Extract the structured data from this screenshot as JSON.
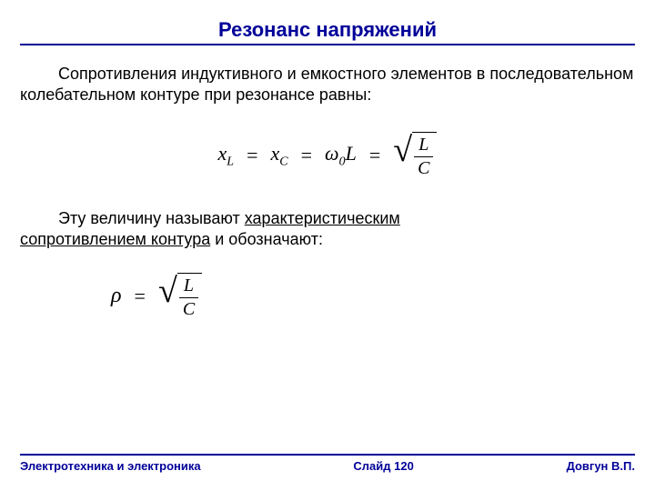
{
  "colors": {
    "accent": "#000099",
    "text": "#000000",
    "background": "#ffffff"
  },
  "typography": {
    "title_fontsize": 22,
    "body_fontsize": 18,
    "formula_fontsize": 22,
    "footer_fontsize": 13,
    "title_weight": "bold",
    "footer_weight": "bold",
    "body_font": "Arial",
    "formula_font": "Times New Roman"
  },
  "title": "Резонанс напряжений",
  "paragraph1": "Сопротивления индуктивного и емкостного элементов в последовательном колебательном контуре при резонансе равны:",
  "formula1": {
    "lhs_x": "x",
    "lhs_sub_L": "L",
    "lhs_sub_C": "C",
    "eq": "=",
    "omega": "ω",
    "omega_sub": "0",
    "L": "L",
    "frac_num": "L",
    "frac_den": "C"
  },
  "paragraph2_pre": "Эту величину называют ",
  "paragraph2_underline1": "характеристическим",
  "paragraph2_underline2": "сопротивлением контура",
  "paragraph2_post": " и обозначают:",
  "formula2": {
    "rho": "ρ",
    "eq": "=",
    "frac_num": "L",
    "frac_den": "C"
  },
  "footer": {
    "left": "Электротехника и электроника",
    "center": "Слайд 120",
    "right": "Довгун В.П."
  }
}
